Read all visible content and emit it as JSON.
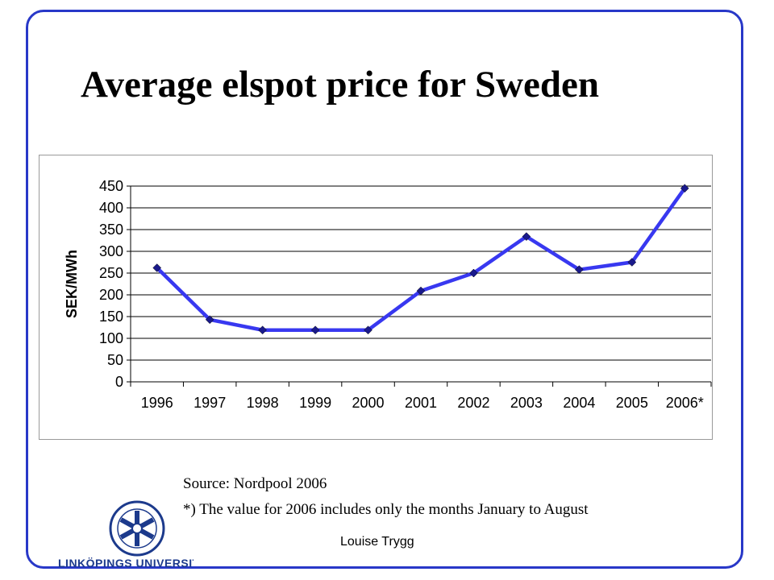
{
  "slide": {
    "title": "Average elspot price for Sweden",
    "source": "Source: Nordpool 2006",
    "footnote": "*) The value for 2006 includes only the months January to August",
    "author": "Louise Trygg",
    "logo_text": "LINKÖPINGS UNIVERSITET",
    "colors": {
      "frame": "#2838c8",
      "series_line": "#3838f0",
      "marker": "#1a1a8c"
    }
  },
  "chart_data": {
    "type": "line",
    "title": "",
    "xlabel": "",
    "ylabel": "SEK/MWh",
    "categories": [
      "1996",
      "1997",
      "1998",
      "1999",
      "2000",
      "2001",
      "2002",
      "2003",
      "2004",
      "2005",
      "2006*"
    ],
    "series": [
      {
        "values": [
          262,
          143,
          119,
          119,
          119,
          209,
          250,
          334,
          258,
          275,
          445
        ]
      }
    ],
    "yticks": [
      "0",
      "50",
      "100",
      "150",
      "200",
      "250",
      "300",
      "350",
      "400",
      "450"
    ],
    "ylim": [
      0,
      450
    ],
    "grid": true,
    "legend": "none"
  }
}
